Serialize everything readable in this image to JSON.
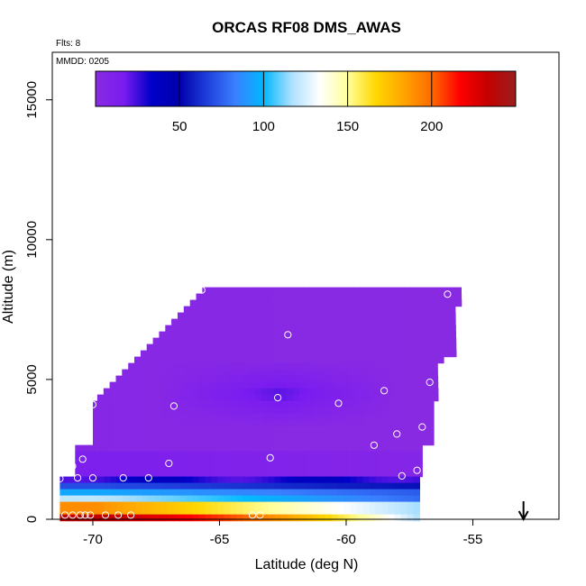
{
  "chart_data": {
    "type": "heatmap",
    "title": "ORCAS RF08 DMS_AWAS",
    "annotations": {
      "flights": "Flts: 8",
      "date": "MMDD: 0205"
    },
    "xlabel": "Latitude (deg N)",
    "ylabel": "Altitude (m)",
    "xlim": [
      -71.6,
      -51.6
    ],
    "ylim": [
      0,
      16700
    ],
    "x_ticks": [
      -70,
      -65,
      -60,
      -55
    ],
    "x_tick_labels": [
      "-70",
      "-65",
      "-60",
      "-55"
    ],
    "y_ticks": [
      0,
      5000,
      10000,
      15000
    ],
    "y_tick_labels": [
      "0",
      "5000",
      "10000",
      "15000"
    ],
    "grid": false,
    "colorbar": {
      "range": [
        0,
        250
      ],
      "ticks": [
        50,
        100,
        150,
        200
      ],
      "tick_labels": [
        "50",
        "100",
        "150",
        "200"
      ],
      "colors": [
        "#8a2be2",
        "#7a1cf0",
        "#0000c8",
        "#0000aa",
        "#2040dd",
        "#3a80ff",
        "#00b8ff",
        "#aee0ff",
        "#ffffff",
        "#ffff99",
        "#ffd700",
        "#ffa500",
        "#ff6a00",
        "#ff0000",
        "#c40000",
        "#9a1e1e"
      ]
    },
    "arrow": {
      "x": -53.0,
      "direction": "down"
    },
    "sample_points": [
      {
        "x": -65.7,
        "y": 8200
      },
      {
        "x": -56.0,
        "y": 8050
      },
      {
        "x": -62.3,
        "y": 6600
      },
      {
        "x": -56.7,
        "y": 4900
      },
      {
        "x": -58.5,
        "y": 4600
      },
      {
        "x": -62.7,
        "y": 4350
      },
      {
        "x": -60.3,
        "y": 4150
      },
      {
        "x": -70.0,
        "y": 4100
      },
      {
        "x": -66.8,
        "y": 4050
      },
      {
        "x": -57.0,
        "y": 3300
      },
      {
        "x": -58.0,
        "y": 3050
      },
      {
        "x": -58.9,
        "y": 2650
      },
      {
        "x": -63.0,
        "y": 2200
      },
      {
        "x": -70.4,
        "y": 2150
      },
      {
        "x": -67.0,
        "y": 2000
      },
      {
        "x": -70.8,
        "y": 1900
      },
      {
        "x": -57.2,
        "y": 1750
      },
      {
        "x": -57.8,
        "y": 1550
      },
      {
        "x": -70.6,
        "y": 1480
      },
      {
        "x": -70.0,
        "y": 1480
      },
      {
        "x": -68.8,
        "y": 1480
      },
      {
        "x": -67.8,
        "y": 1480
      },
      {
        "x": -71.3,
        "y": 1450
      },
      {
        "x": -63.7,
        "y": 150
      },
      {
        "x": -63.4,
        "y": 150
      },
      {
        "x": -71.1,
        "y": 150
      },
      {
        "x": -70.8,
        "y": 150
      },
      {
        "x": -70.5,
        "y": 150
      },
      {
        "x": -70.3,
        "y": 150
      },
      {
        "x": -70.1,
        "y": 150
      },
      {
        "x": -69.5,
        "y": 150
      },
      {
        "x": -69.0,
        "y": 150
      },
      {
        "x": -68.5,
        "y": 150
      }
    ]
  }
}
